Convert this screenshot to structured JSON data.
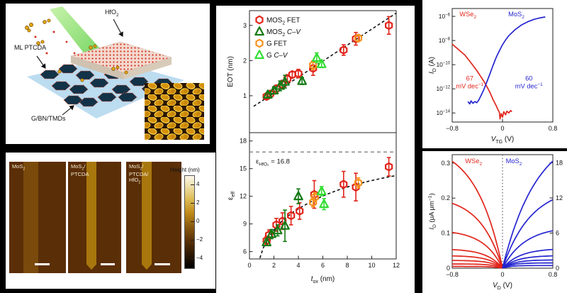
{
  "figure": {
    "background": "#000000"
  },
  "schematic": {
    "label_hfo2": "HfO_{2}",
    "label_ptcda": "ML PTCDA",
    "label_substrate": "G/BN/TMDs"
  },
  "afm": {
    "images": [
      {
        "label_lines": [
          "MoS_{2}"
        ]
      },
      {
        "label_lines": [
          "MoS_{2}/",
          "PTCDA"
        ]
      },
      {
        "label_lines": [
          "MoS_{2}/",
          "PTCDA/",
          "HfO_{2}"
        ]
      }
    ],
    "colorbar": {
      "title": "Height (nm)",
      "ticks": [
        4,
        2,
        0,
        -2,
        -4
      ]
    }
  },
  "chart_data": [
    {
      "id": "eot",
      "type": "scatter",
      "ylabel": "EOT (nm)",
      "xlim": [
        0,
        12
      ],
      "ylim": [
        -0.05,
        3.42
      ],
      "yticks": [
        1,
        2,
        3
      ],
      "grid": false,
      "legend_position": "top-left",
      "legend": [
        {
          "label": "MOS_{2} FET",
          "marker": "hexagon",
          "color": "#e1251b"
        },
        {
          "label": "MOS_{2} *{C–V}",
          "marker": "triangle",
          "color": "#157a15"
        },
        {
          "label": "G FET",
          "marker": "hexagon",
          "color": "#f6921e"
        },
        {
          "label": "G *{C–V}",
          "marker": "triangle",
          "color": "#35dd35"
        }
      ],
      "fit_line": {
        "color": "#111111",
        "points": [
          [
            0.35,
            0.7
          ],
          [
            12,
            3.35
          ]
        ]
      },
      "series": [
        {
          "name": "mos2-fet",
          "marker": "hexagon",
          "color": "#e1251b",
          "points": [
            [
              1.4,
              0.98,
              0.08
            ],
            [
              1.7,
              1.05,
              0.09
            ],
            [
              2.2,
              1.2,
              0.1
            ],
            [
              2.7,
              1.32,
              0.12
            ],
            [
              3.1,
              1.48,
              0.12
            ],
            [
              3.5,
              1.6,
              0.09
            ],
            [
              4.0,
              1.63,
              0.12
            ],
            [
              5.2,
              1.78,
              0.2
            ],
            [
              7.7,
              2.3,
              0.15
            ],
            [
              8.7,
              2.62,
              0.18
            ],
            [
              11.4,
              3.0,
              0.25
            ]
          ]
        },
        {
          "name": "mos2-cv",
          "marker": "triangle",
          "color": "#157a15",
          "points": [
            [
              1.5,
              1.03,
              0.07
            ],
            [
              2.0,
              1.15,
              0.1
            ],
            [
              2.5,
              1.28,
              0.14
            ],
            [
              2.9,
              1.4,
              0.18
            ],
            [
              4.3,
              1.42,
              0.1
            ]
          ]
        },
        {
          "name": "g-fet",
          "marker": "hexagon",
          "color": "#f6921e",
          "points": [
            [
              5.2,
              1.87,
              0.12
            ],
            [
              8.9,
              2.64,
              0.1
            ]
          ]
        },
        {
          "name": "g-cv",
          "marker": "triangle",
          "color": "#35dd35",
          "points": [
            [
              5.5,
              2.08,
              0.14
            ],
            [
              5.9,
              1.9,
              0.1
            ]
          ]
        }
      ]
    },
    {
      "id": "eps",
      "type": "scatter",
      "ylabel": "ε_{eff}",
      "xlabel": "*{t}_{ox} (nm)",
      "xlim": [
        0,
        12
      ],
      "ylim": [
        5.2,
        18.9
      ],
      "yticks": [
        6,
        9,
        12,
        15,
        18
      ],
      "xticks": [
        0,
        2,
        4,
        6,
        8,
        10,
        12
      ],
      "grid": false,
      "hline": {
        "y": 16.8,
        "label": "ε_{HfO₂} = 16.8",
        "color": "#777777"
      },
      "fit_curve": {
        "color": "#111111",
        "points": [
          [
            0.85,
            5.3
          ],
          [
            1.1,
            6.3
          ],
          [
            1.4,
            7.15
          ],
          [
            1.8,
            8.0
          ],
          [
            2.3,
            8.85
          ],
          [
            2.9,
            9.6
          ],
          [
            3.6,
            10.3
          ],
          [
            4.4,
            10.95
          ],
          [
            5.3,
            11.6
          ],
          [
            6.3,
            12.2
          ],
          [
            7.4,
            12.75
          ],
          [
            8.6,
            13.25
          ],
          [
            9.8,
            13.65
          ],
          [
            11.0,
            14.0
          ],
          [
            12.0,
            14.25
          ]
        ]
      },
      "series": [
        {
          "name": "mos2-fet",
          "marker": "hexagon",
          "color": "#e1251b",
          "points": [
            [
              1.4,
              7.2,
              0.45
            ],
            [
              1.6,
              7.8,
              0.55
            ],
            [
              2.2,
              8.9,
              0.7
            ],
            [
              2.7,
              9.3,
              0.9
            ],
            [
              3.4,
              9.9,
              1.0
            ],
            [
              4.1,
              10.4,
              0.9
            ],
            [
              5.3,
              12.2,
              1.5
            ],
            [
              7.7,
              13.3,
              1.4
            ],
            [
              8.7,
              13.0,
              1.5
            ],
            [
              11.4,
              15.2,
              1.0
            ]
          ]
        },
        {
          "name": "mos2-cv",
          "marker": "triangle",
          "color": "#157a15",
          "points": [
            [
              1.4,
              7.0,
              0.35
            ],
            [
              1.8,
              7.9,
              0.5
            ],
            [
              2.3,
              8.3,
              0.6
            ],
            [
              2.9,
              8.8,
              1.7
            ],
            [
              4.0,
              12.0,
              0.8
            ]
          ]
        },
        {
          "name": "g-fet",
          "marker": "hexagon",
          "color": "#f6921e",
          "points": [
            [
              5.2,
              11.35,
              0.5
            ],
            [
              5.35,
              11.9,
              0.5
            ],
            [
              8.9,
              13.45,
              0.55
            ]
          ]
        },
        {
          "name": "g-cv",
          "marker": "triangle",
          "color": "#35dd35",
          "points": [
            [
              5.9,
              12.55,
              0.5
            ],
            [
              6.1,
              11.15,
              0.6
            ]
          ]
        }
      ]
    },
    {
      "id": "transfer",
      "type": "line-log",
      "xlabel": "*{V}_{TG} (V)",
      "ylabel": "*{I}_{D} (A)",
      "xlim": [
        -0.8,
        0.8
      ],
      "xticks": [
        -0.8,
        0,
        0.8
      ],
      "ylog_min": -14.75,
      "ylog_max": -5.35,
      "ylog_ticks": [
        -6,
        -8,
        -10,
        -12,
        -14
      ],
      "curves": [
        {
          "name": "WSe2",
          "color": "#e1251b",
          "points": [
            [
              -0.8,
              -8.3
            ],
            [
              -0.7,
              -8.75
            ],
            [
              -0.6,
              -9.2
            ],
            [
              -0.5,
              -9.85
            ],
            [
              -0.45,
              -10.2
            ],
            [
              -0.4,
              -10.55
            ],
            [
              -0.35,
              -10.95
            ],
            [
              -0.3,
              -11.35
            ],
            [
              -0.25,
              -11.8
            ],
            [
              -0.2,
              -12.3
            ],
            [
              -0.15,
              -12.9
            ],
            [
              -0.1,
              -13.4
            ],
            [
              -0.07,
              -13.75
            ],
            [
              -0.05,
              -13.95
            ],
            [
              -0.04,
              -14.5
            ],
            [
              -0.02,
              -14.05
            ],
            [
              0.0,
              -14.35
            ],
            [
              0.02,
              -13.9
            ],
            [
              0.05,
              -14.15
            ],
            [
              0.07,
              -13.85
            ],
            [
              0.1,
              -14.0
            ],
            [
              0.13,
              -13.8
            ],
            [
              0.15,
              -13.9
            ]
          ]
        },
        {
          "name": "MoS2",
          "color": "#2525d0",
          "points": [
            [
              -0.55,
              -13.05
            ],
            [
              -0.52,
              -13.25
            ],
            [
              -0.5,
              -13.0
            ],
            [
              -0.47,
              -13.2
            ],
            [
              -0.44,
              -13.05
            ],
            [
              -0.41,
              -13.15
            ],
            [
              -0.38,
              -12.95
            ],
            [
              -0.35,
              -12.65
            ],
            [
              -0.3,
              -12.1
            ],
            [
              -0.25,
              -11.45
            ],
            [
              -0.2,
              -10.75
            ],
            [
              -0.15,
              -10.05
            ],
            [
              -0.1,
              -9.4
            ],
            [
              -0.05,
              -8.85
            ],
            [
              0.0,
              -8.35
            ],
            [
              0.05,
              -7.95
            ],
            [
              0.1,
              -7.6
            ],
            [
              0.15,
              -7.35
            ],
            [
              0.2,
              -7.1
            ],
            [
              0.3,
              -6.72
            ],
            [
              0.4,
              -6.45
            ],
            [
              0.5,
              -6.25
            ],
            [
              0.6,
              -6.12
            ],
            [
              0.68,
              -6.05
            ]
          ]
        }
      ],
      "annotations": [
        {
          "lines": [
            "WSe_{2}"
          ],
          "color": "#e1251b",
          "x": -0.55,
          "logy": -6.0
        },
        {
          "lines": [
            "MoS_{2}"
          ],
          "color": "#2525d0",
          "x": 0.22,
          "logy": -6.0
        },
        {
          "lines": [
            "67",
            "mV dec^{−1}"
          ],
          "color": "#e1251b",
          "x": -0.52,
          "logy": -11.3
        },
        {
          "lines": [
            "60",
            "mV dec^{−1}"
          ],
          "color": "#2525d0",
          "x": 0.42,
          "logy": -11.3
        }
      ]
    },
    {
      "id": "output",
      "type": "line-family",
      "xlabel": "*{V}_{D} (V)",
      "ylabel": "*{I}_{D} (μA μm^{−1})",
      "xlim": [
        -0.8,
        0.8
      ],
      "xticks": [
        -0.8,
        0,
        0.8
      ],
      "left_ylim": [
        0,
        0.324
      ],
      "left_yticks": [
        0,
        0.1,
        0.2,
        0.3
      ],
      "right_ylim": [
        0,
        19.4
      ],
      "right_yticks": [
        0,
        6,
        12,
        18
      ],
      "vline_x": 0,
      "families": [
        {
          "name": "WSe_{2}",
          "color": "#e1251b",
          "side": "left",
          "sign": -1,
          "label_x": -0.46,
          "sat": [
            0.305,
            0.185,
            0.102,
            0.053,
            0.035,
            0.022,
            0.012,
            0.005
          ],
          "v0": [
            0.42,
            0.36,
            0.3,
            0.25,
            0.21,
            0.18,
            0.15,
            0.13
          ]
        },
        {
          "name": "MoS_{2}",
          "color": "#2525d0",
          "side": "right",
          "sign": 1,
          "label_x": 0.18,
          "sat": [
            18.3,
            11.7,
            6.4,
            3.2,
            2.1,
            1.4,
            0.9,
            0.45
          ],
          "v0": [
            0.55,
            0.45,
            0.36,
            0.28,
            0.23,
            0.19,
            0.15,
            0.12
          ]
        }
      ]
    }
  ]
}
